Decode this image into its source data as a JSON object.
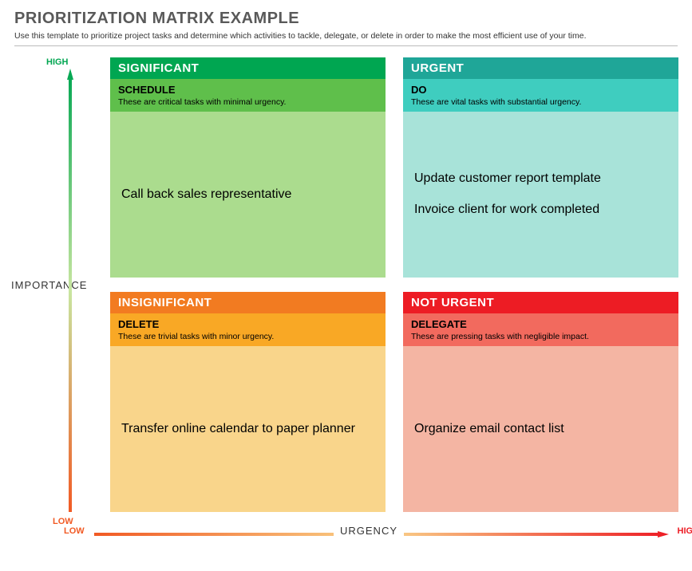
{
  "title": "PRIORITIZATION MATRIX EXAMPLE",
  "subtitle": "Use this template to prioritize project tasks and determine which activities to tackle, delegate, or delete in order to make the most efficient use of your time.",
  "y_axis": {
    "label": "IMPORTANCE",
    "high": "HIGH",
    "low": "LOW",
    "high_color": "#00a651",
    "low_color": "#f15a24"
  },
  "x_axis": {
    "label": "URGENCY",
    "low": "LOW",
    "high": "HIGH",
    "low_color": "#f15a24",
    "high_color": "#ed1c24"
  },
  "quadrants": [
    {
      "title": "SIGNIFICANT",
      "action": "SCHEDULE",
      "desc": "These are critical tasks with minimal urgency.",
      "title_bg": "#00a651",
      "sub_bg": "#5fbf4b",
      "body_bg": "#abdc8e",
      "text_color": "#000",
      "items": [
        "Call back sales representative"
      ]
    },
    {
      "title": "URGENT",
      "action": "DO",
      "desc": "These are vital tasks with substantial urgency.",
      "title_bg": "#1fa698",
      "sub_bg": "#3fcdbf",
      "body_bg": "#a8e3d9",
      "text_color": "#000",
      "items": [
        "Update customer report template",
        "Invoice client for work completed"
      ]
    },
    {
      "title": "INSIGNIFICANT",
      "action": "DELETE",
      "desc": "These are trivial tasks with minor urgency.",
      "title_bg": "#f27b21",
      "sub_bg": "#f9a825",
      "body_bg": "#f9d58b",
      "text_color": "#000",
      "items": [
        "Transfer online calendar to paper planner"
      ]
    },
    {
      "title": "NOT URGENT",
      "action": "DELEGATE",
      "desc": "These are pressing tasks with negligible impact.",
      "title_bg": "#ed1c24",
      "sub_bg": "#f26a5e",
      "body_bg": "#f4b5a3",
      "text_color": "#000",
      "items": [
        "Organize email contact list"
      ]
    }
  ]
}
